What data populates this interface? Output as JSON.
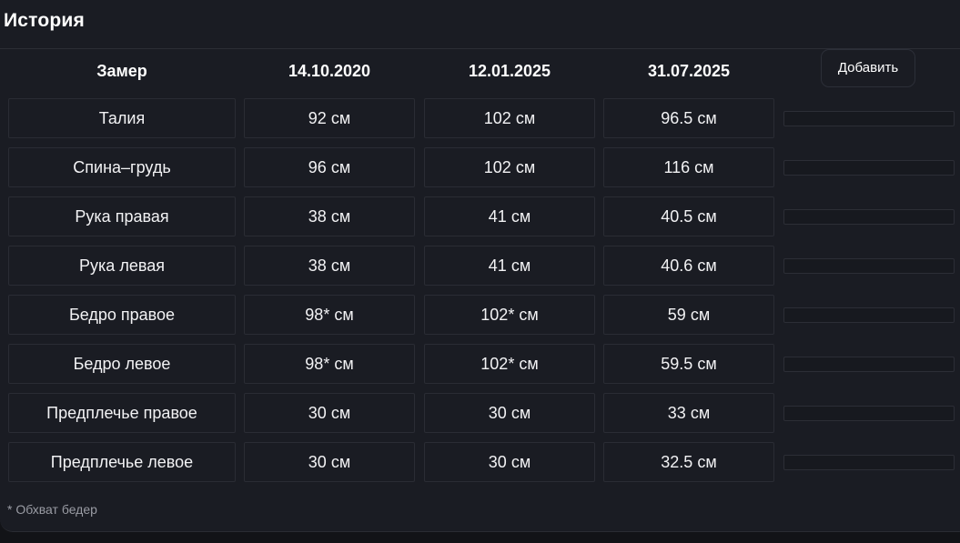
{
  "section": {
    "title": "История",
    "add_button_label": "Добавить",
    "footnote": "* Обхват бедер"
  },
  "table": {
    "headers": [
      "Замер",
      "14.10.2020",
      "12.01.2025",
      "31.07.2025"
    ],
    "rows": [
      {
        "label": "Талия",
        "values": [
          "92 см",
          "102 см",
          "96.5 см"
        ]
      },
      {
        "label": "Спина–грудь",
        "values": [
          "96 см",
          "102 см",
          "116 см"
        ]
      },
      {
        "label": "Рука правая",
        "values": [
          "38 см",
          "41 см",
          "40.5 см"
        ]
      },
      {
        "label": "Рука левая",
        "values": [
          "38 см",
          "41 см",
          "40.6 см"
        ]
      },
      {
        "label": "Бедро правое",
        "values": [
          "98* см",
          "102* см",
          "59 см"
        ]
      },
      {
        "label": "Бедро левое",
        "values": [
          "98* см",
          "102* см",
          "59.5 см"
        ]
      },
      {
        "label": "Предплечье правое",
        "values": [
          "30 см",
          "30 см",
          "33 см"
        ]
      },
      {
        "label": "Предплечье левое",
        "values": [
          "30 см",
          "30 см",
          "32.5 см"
        ]
      }
    ]
  }
}
